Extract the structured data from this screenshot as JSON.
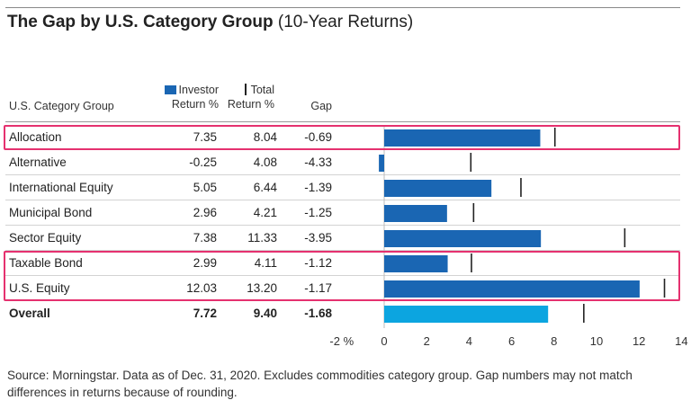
{
  "title": "The Gap by U.S. Category Group",
  "subtitle": "(10-Year Returns)",
  "headers": {
    "group": "U.S. Category Group",
    "investor_line1": "Investor",
    "investor_line2": "Return %",
    "total_line1": "Total",
    "total_line2": "Return %",
    "gap": "Gap"
  },
  "colors": {
    "investor_bar": "#1a66b3",
    "overall_bar": "#0ca5e0",
    "total_tick": "#222222",
    "highlight": "#e5316f"
  },
  "rows": [
    {
      "group": "Allocation",
      "investor": "7.35",
      "total": "8.04",
      "gap": "-0.69"
    },
    {
      "group": "Alternative",
      "investor": "-0.25",
      "total": "4.08",
      "gap": "-4.33"
    },
    {
      "group": "International Equity",
      "investor": "5.05",
      "total": "6.44",
      "gap": "-1.39"
    },
    {
      "group": "Municipal Bond",
      "investor": "2.96",
      "total": "4.21",
      "gap": "-1.25"
    },
    {
      "group": "Sector Equity",
      "investor": "7.38",
      "total": "11.33",
      "gap": "-3.95"
    },
    {
      "group": "Taxable Bond",
      "investor": "2.99",
      "total": "4.11",
      "gap": "-1.12"
    },
    {
      "group": "U.S. Equity",
      "investor": "12.03",
      "total": "13.20",
      "gap": "-1.17"
    },
    {
      "group": "Overall",
      "investor": "7.72",
      "total": "9.40",
      "gap": "-1.68"
    }
  ],
  "chart_data": {
    "type": "bar",
    "orientation": "horizontal",
    "categories": [
      "Allocation",
      "Alternative",
      "International Equity",
      "Municipal Bond",
      "Sector Equity",
      "Taxable Bond",
      "U.S. Equity",
      "Overall"
    ],
    "series": [
      {
        "name": "Investor Return %",
        "mark": "bar",
        "values": [
          7.35,
          -0.25,
          5.05,
          2.96,
          7.38,
          2.99,
          12.03,
          7.72
        ]
      },
      {
        "name": "Total Return %",
        "mark": "tick",
        "values": [
          8.04,
          4.08,
          6.44,
          4.21,
          11.33,
          4.11,
          13.2,
          9.4
        ]
      }
    ],
    "xlim": [
      -2,
      14
    ],
    "x_ticks": [
      -2,
      0,
      2,
      4,
      6,
      8,
      10,
      12,
      14
    ],
    "x_tick_labels": [
      "-2 %",
      "0",
      "2",
      "4",
      "6",
      "8",
      "10",
      "12",
      "14"
    ],
    "highlighted": [
      "Allocation",
      "Taxable Bond",
      "U.S. Equity"
    ]
  },
  "source": "Source: Morningstar. Data as of Dec. 31, 2020. Excludes commodities category group. Gap numbers may not match differences in returns because of rounding."
}
